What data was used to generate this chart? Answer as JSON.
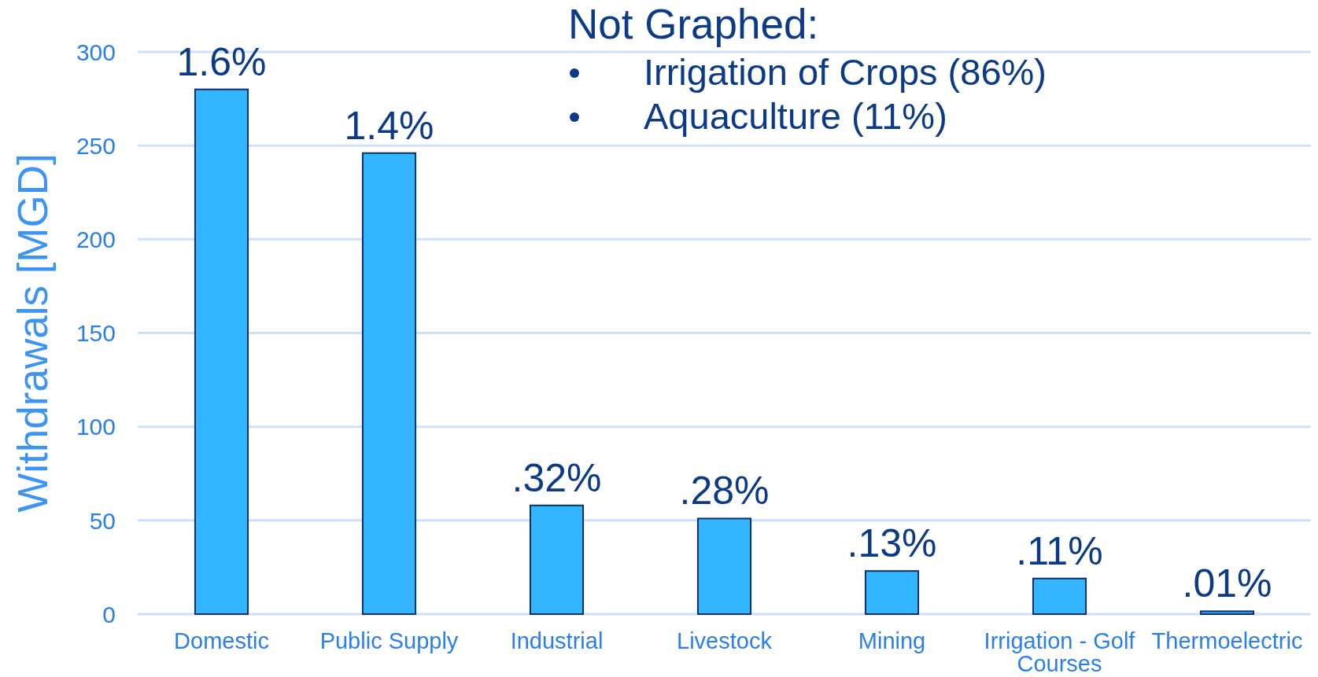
{
  "chart_data": {
    "type": "bar",
    "ylabel": "Withdrawals [MGD]",
    "categories": [
      "Domestic",
      "Public Supply",
      "Industrial",
      "Livestock",
      "Mining",
      "Irrigation - Golf Courses",
      "Thermoelectric"
    ],
    "values": [
      280,
      246,
      58,
      51,
      23,
      19,
      1.5
    ],
    "color": "#33b5ff",
    "ylim": [
      0,
      300
    ],
    "yticks": [
      0,
      50,
      100,
      150,
      200,
      250,
      300
    ],
    "grid": "y",
    "annotations": [
      "Not Graphed:",
      "Irrigation of Crops (86%)",
      "Aquaculture (11%)",
      {
        "text": "1.6%",
        "x": "Domestic",
        "y": 280
      },
      {
        "text": "1.4%",
        "x": "Public Supply",
        "y": 246
      },
      {
        "text": ".32%",
        "x": "Industrial",
        "y": 58
      },
      {
        "text": ".28%",
        "x": "Livestock",
        "y": 51
      },
      {
        "text": ".13%",
        "x": "Mining",
        "y": 23
      },
      {
        "text": ".11%",
        "x": "Irrigation - Golf Courses",
        "y": 19
      },
      {
        "text": ".01%",
        "x": "Thermoelectric",
        "y": 1.5
      }
    ]
  }
}
